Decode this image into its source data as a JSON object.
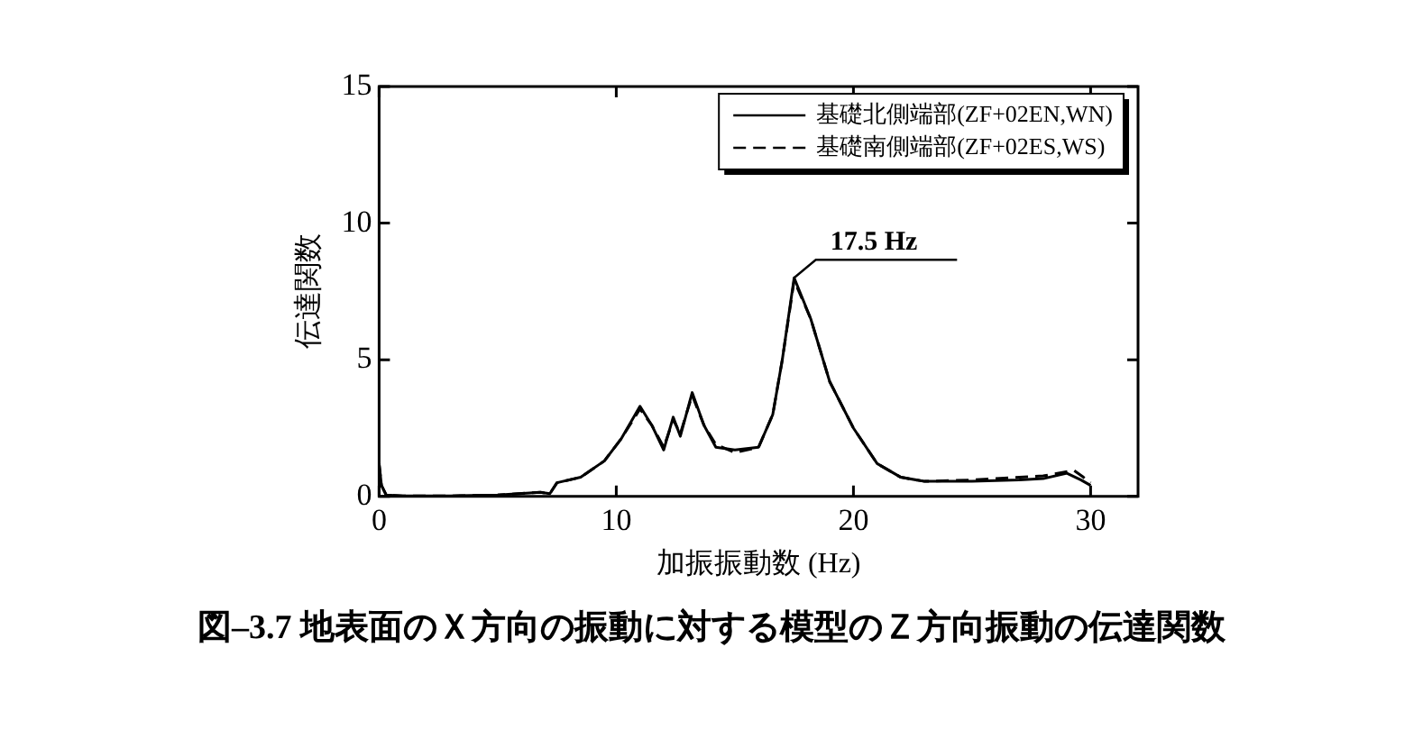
{
  "chart_data": {
    "type": "line",
    "title": "図–3.7 地表面のＸ方向の振動に対する模型のＺ方向振動の伝達関数",
    "xlabel": "加振振動数 (Hz)",
    "ylabel": "伝達関数",
    "xlim": [
      0,
      32
    ],
    "ylim": [
      0,
      15
    ],
    "xticks": [
      0,
      10,
      20,
      30
    ],
    "yticks": [
      0,
      5,
      10,
      15
    ],
    "grid": false,
    "legend": "top right",
    "marker": "none",
    "annotations": [
      {
        "text": "17.5 Hz",
        "x": 17.5,
        "y": 8.0
      }
    ],
    "series": [
      {
        "name": "基礎北側端部(ZF+02EN,WN)",
        "color": "#000000",
        "line_style": "solid",
        "x": [
          0,
          0.1,
          0.3,
          1,
          3,
          5,
          6.8,
          7.2,
          7.5,
          8.5,
          9.5,
          10.2,
          11,
          11.5,
          12,
          12.4,
          12.7,
          13.2,
          13.7,
          14.2,
          15,
          16,
          16.6,
          17,
          17.5,
          18.2,
          19,
          20,
          21,
          22,
          23,
          25,
          27,
          28,
          29,
          29.6,
          30
        ],
        "values": [
          1.2,
          0.4,
          0.05,
          0.02,
          0.02,
          0.05,
          0.15,
          0.1,
          0.5,
          0.7,
          1.3,
          2.1,
          3.3,
          2.6,
          1.7,
          2.9,
          2.2,
          3.8,
          2.6,
          1.8,
          1.7,
          1.8,
          3.0,
          5.0,
          8.0,
          6.5,
          4.2,
          2.5,
          1.2,
          0.7,
          0.55,
          0.55,
          0.6,
          0.65,
          0.85,
          0.6,
          0.4
        ]
      },
      {
        "name": "基礎南側端部(ZF+02ES,WS)",
        "color": "#000000",
        "line_style": "dashed",
        "x": [
          0,
          0.1,
          0.3,
          1,
          3,
          5,
          6.8,
          7.2,
          7.5,
          8.5,
          9.5,
          10.2,
          11,
          11.5,
          12,
          12.4,
          12.7,
          13.2,
          13.7,
          14.2,
          15,
          16,
          16.6,
          17,
          17.5,
          18.2,
          19,
          20,
          21,
          22,
          23,
          25,
          26,
          27,
          28,
          29.3,
          29.7,
          30
        ],
        "values": [
          1.2,
          0.4,
          0.05,
          0.02,
          0.02,
          0.05,
          0.15,
          0.1,
          0.5,
          0.7,
          1.3,
          2.1,
          3.2,
          2.6,
          1.8,
          2.8,
          2.3,
          3.7,
          2.6,
          1.9,
          1.6,
          1.8,
          3.0,
          5.0,
          7.9,
          6.5,
          4.2,
          2.5,
          1.2,
          0.7,
          0.55,
          0.6,
          0.65,
          0.7,
          0.75,
          0.95,
          0.7,
          0.5
        ]
      }
    ]
  }
}
